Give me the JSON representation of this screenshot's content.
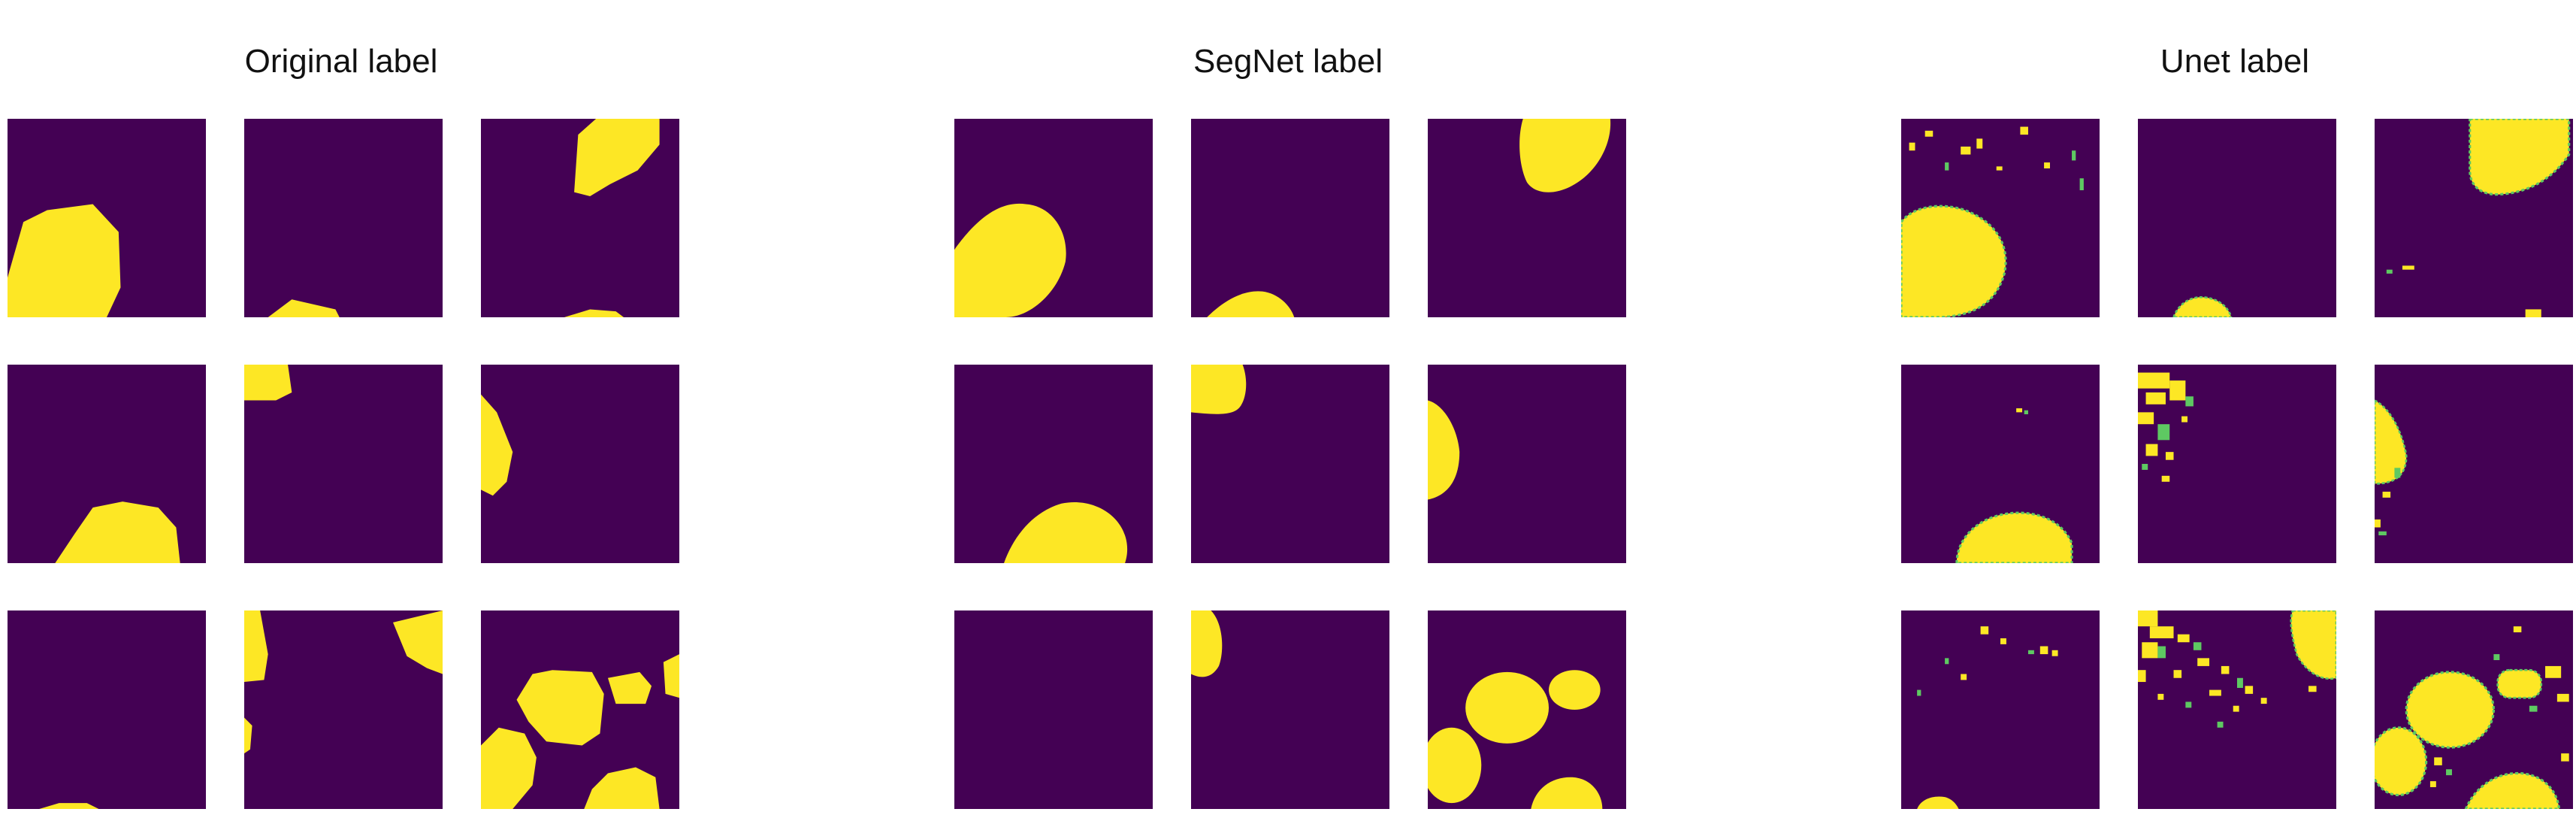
{
  "colors": {
    "background": "#440154",
    "foreground": "#fde725",
    "edge": "#5ec962"
  },
  "groups": [
    {
      "key": "original",
      "title": "Original label"
    },
    {
      "key": "segnet",
      "title": "SegNet label"
    },
    {
      "key": "unet",
      "title": "Unet label"
    }
  ]
}
